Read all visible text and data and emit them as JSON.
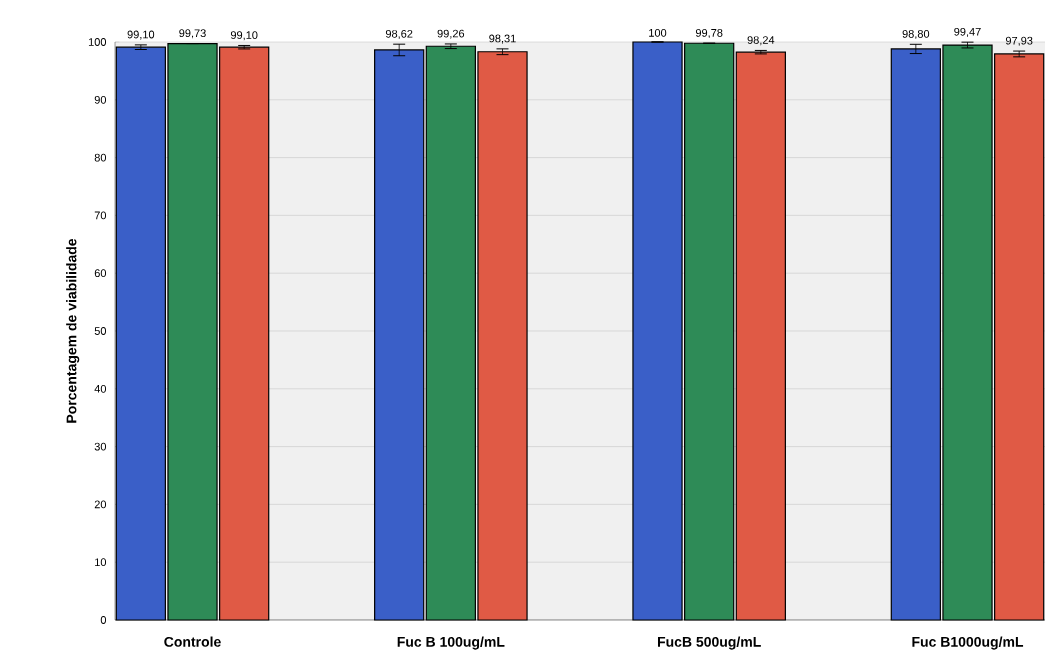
{
  "chart_data": {
    "type": "bar",
    "ylabel": "Porcentagem de viabilidade",
    "categories": [
      "Controle",
      "Fuc B 100ug/mL",
      "FucB 500ug/mL",
      "Fuc B1000ug/mL"
    ],
    "series": [
      {
        "color": "#3a5fc8",
        "values": [
          99.1,
          98.62,
          100,
          98.8
        ],
        "errors": [
          0.4,
          1.0,
          null,
          0.8
        ],
        "value_labels": [
          "99,10",
          "98,62",
          "100",
          "98,80"
        ]
      },
      {
        "color": "#2e8b57",
        "values": [
          99.73,
          99.26,
          99.78,
          99.47
        ],
        "errors": [
          null,
          0.4,
          null,
          0.5
        ],
        "value_labels": [
          "99,73",
          "99,26",
          "99,78",
          "99,47"
        ]
      },
      {
        "color": "#e05a45",
        "values": [
          99.1,
          98.31,
          98.24,
          97.93
        ],
        "errors": [
          0.3,
          0.5,
          0.3,
          0.5
        ],
        "value_labels": [
          "99,10",
          "98,31",
          "98,24",
          "97,93"
        ]
      }
    ],
    "ylim": [
      0,
      100
    ],
    "yticks": [
      0,
      10,
      20,
      30,
      40,
      50,
      60,
      70,
      80,
      90,
      100
    ],
    "grid": "y"
  }
}
